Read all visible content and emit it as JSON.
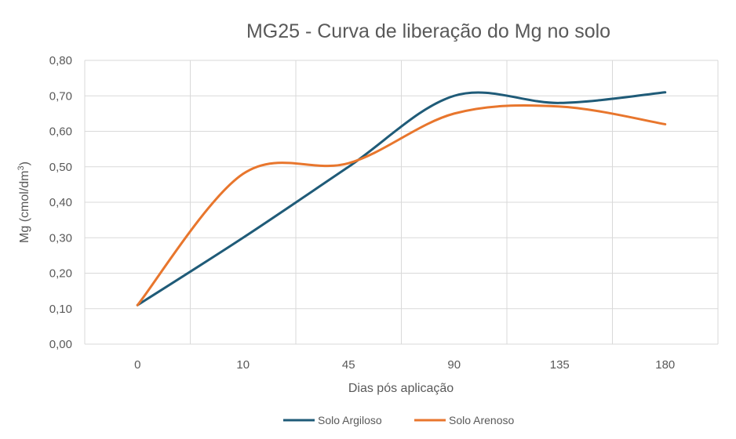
{
  "chart_data": {
    "type": "line",
    "title": "MG25 - Curva de liberação do Mg no solo",
    "xlabel": "Dias pós aplicação",
    "ylabel_main": "Mg (cmol/dm",
    "ylabel_sup": "3",
    "ylabel_close": ")",
    "categories": [
      "0",
      "10",
      "45",
      "90",
      "135",
      "180"
    ],
    "yticks": [
      "0,00",
      "0,10",
      "0,20",
      "0,30",
      "0,40",
      "0,50",
      "0,60",
      "0,70",
      "0,80"
    ],
    "ylim": [
      0,
      0.8
    ],
    "grid": true,
    "legend_position": "bottom",
    "series": [
      {
        "name": "Solo Argiloso",
        "color": "#1f5b78",
        "values": [
          0.11,
          0.3,
          0.5,
          0.7,
          0.68,
          0.71
        ]
      },
      {
        "name": "Solo Arenoso",
        "color": "#e8762d",
        "values": [
          0.11,
          0.48,
          0.51,
          0.65,
          0.67,
          0.62
        ]
      }
    ]
  }
}
